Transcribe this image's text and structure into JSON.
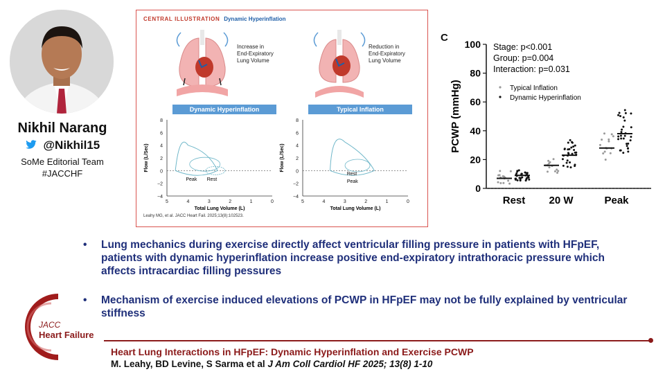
{
  "presenter": {
    "name": "Nikhil Narang",
    "handle": "@Nikhil15",
    "team": "SoMe Editorial Team",
    "hashtag": "#JACCHF"
  },
  "central_illustration": {
    "label": "CENTRAL ILLUSTRATION",
    "title": "Dynamic Hyperinflation",
    "left_caption": [
      "Increase in",
      "End-Expiratory",
      "Lung Volume"
    ],
    "right_caption": [
      "Reduction in",
      "End-Expiratory",
      "Lung Volume"
    ],
    "left_chart_title": "Dynamic Hyperinflation",
    "right_chart_title": "Typical Inflation",
    "y_label": "Flow (L/Sec)",
    "x_label": "Total Lung Volume (L)",
    "y_ticks": [
      "8",
      "6",
      "4",
      "2",
      "0",
      "−2",
      "−4"
    ],
    "x_ticks": [
      "5",
      "4",
      "3",
      "2",
      "1",
      "0"
    ],
    "left_loop_labels": [
      "Peak",
      "Rest"
    ],
    "right_loop_labels": [
      "Rest",
      "Peak"
    ],
    "citation": "Leahy MG, et al. JACC Heart Fail. 2025;13(8):102523."
  },
  "panel_c": {
    "label": "C",
    "stats": [
      "Stage: p<0.001",
      "Group: p=0.004",
      "Interaction: p=0.031"
    ],
    "legend": [
      "Typical Inflation",
      "Dynamic  Hyperinflation"
    ],
    "colors": {
      "typical": "#9a9a9a",
      "dynamic": "#111111"
    }
  },
  "chart_data": {
    "type": "scatter",
    "title": "",
    "xlabel": "",
    "ylabel": "PCWP (mmHg)",
    "categories": [
      "Rest",
      "20 W",
      "Peak"
    ],
    "ylim": [
      0,
      100
    ],
    "yticks": [
      0,
      20,
      40,
      60,
      80,
      100
    ],
    "series": [
      {
        "name": "Typical Inflation",
        "medians": [
          7,
          16,
          28
        ]
      },
      {
        "name": "Dynamic  Hyperinflation",
        "medians": [
          9,
          23,
          38
        ]
      }
    ]
  },
  "bullets": [
    "Lung mechanics during exercise directly affect ventricular filling pressure in patients with HFpEF, patients with dynamic hyperinflation increase positive end-expiratory intrathoracic pressure which affects intracardiac filling pessures",
    "Mechanism of exercise induced elevations of PCWP in HFpEF may not be fully explained by ventricular stiffness"
  ],
  "logo": {
    "line1": "JACC",
    "line2": "Heart Failure"
  },
  "footer": {
    "title": "Heart Lung Interactions in HFpEF: Dynamic Hyperinflation and Exercise PCWP",
    "authors": "M. Leahy, BD Levine, S Sarma et al",
    "journal": "J Am Coll Cardiol HF 2025; 13(8) 1-10"
  }
}
